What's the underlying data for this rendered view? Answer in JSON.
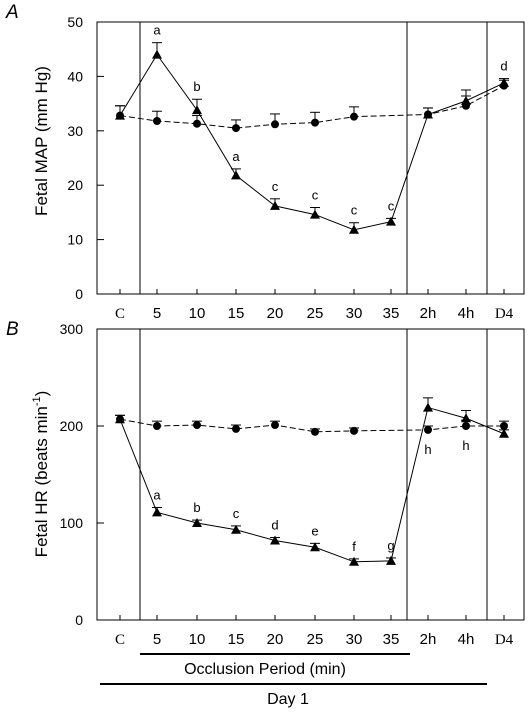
{
  "chart_data": [
    {
      "type": "line",
      "panel_label": "A",
      "ylabel": "Fetal MAP (mm Hg)",
      "ylim": [
        0,
        50
      ],
      "yticks": [
        "0",
        "10",
        "20",
        "30",
        "40",
        "50"
      ],
      "categories": [
        "C",
        "5",
        "10",
        "15",
        "20",
        "25",
        "30",
        "35",
        "2h",
        "4h",
        "D4"
      ],
      "series": [
        {
          "marker": "circle",
          "line": "dashed",
          "values": [
            32.8,
            31.8,
            31.3,
            30.5,
            31.2,
            31.5,
            32.6,
            null,
            33.0,
            34.6,
            38.3
          ],
          "errors": [
            1.8,
            1.8,
            1.5,
            1.5,
            1.9,
            1.9,
            1.8,
            null,
            1.2,
            1.8,
            1.0
          ]
        },
        {
          "marker": "triangle",
          "line": "solid",
          "values": [
            32.8,
            44.0,
            33.8,
            21.8,
            16.2,
            14.6,
            11.8,
            13.3,
            33.0,
            35.5,
            38.8
          ],
          "errors": [
            1.8,
            2.2,
            2.0,
            1.2,
            1.3,
            1.3,
            1.3,
            0.6,
            1.2,
            2.0,
            0.8
          ]
        }
      ],
      "annotations": [
        {
          "category": "5",
          "text": "a"
        },
        {
          "category": "10",
          "text": "b"
        },
        {
          "category": "15",
          "text": "a"
        },
        {
          "category": "20",
          "text": "c"
        },
        {
          "category": "25",
          "text": "c"
        },
        {
          "category": "30",
          "text": "c"
        },
        {
          "category": "35",
          "text": "c"
        },
        {
          "category": "D4",
          "text": "d"
        }
      ]
    },
    {
      "type": "line",
      "panel_label": "B",
      "ylabel": "Fetal HR (beats min",
      "ylabel_sup": "-1",
      "ylabel_close": ")",
      "ylim": [
        0,
        300
      ],
      "yticks": [
        "0",
        "100",
        "200",
        "300"
      ],
      "categories": [
        "C",
        "5",
        "10",
        "15",
        "20",
        "25",
        "30",
        "35",
        "2h",
        "4h",
        "D4"
      ],
      "series": [
        {
          "marker": "circle",
          "line": "dashed",
          "values": [
            207,
            200,
            201,
            197,
            201,
            194,
            195,
            null,
            196,
            200,
            200
          ],
          "errors": [
            4,
            5,
            4,
            4,
            4,
            3,
            3,
            null,
            4,
            6,
            5
          ]
        },
        {
          "marker": "triangle",
          "line": "solid",
          "values": [
            207,
            111,
            100,
            93,
            82,
            75,
            60,
            61,
            219,
            208,
            192
          ],
          "errors": [
            4,
            5,
            3,
            4,
            3,
            4,
            3,
            3,
            10,
            8,
            4
          ]
        }
      ],
      "annotations": [
        {
          "category": "5",
          "text": "a"
        },
        {
          "category": "10",
          "text": "b"
        },
        {
          "category": "15",
          "text": "c"
        },
        {
          "category": "20",
          "text": "d"
        },
        {
          "category": "25",
          "text": "e"
        },
        {
          "category": "30",
          "text": "f"
        },
        {
          "category": "35",
          "text": "g"
        },
        {
          "category": "2h",
          "text": "h"
        },
        {
          "category": "4h",
          "text": "h"
        }
      ]
    }
  ],
  "footer": {
    "occlusion_label": "Occlusion Period (min)",
    "day_label": "Day 1"
  }
}
